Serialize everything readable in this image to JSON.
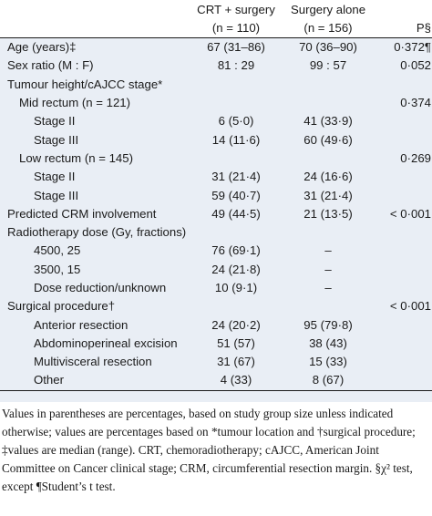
{
  "table": {
    "headers": {
      "group1": "CRT + surgery",
      "group1_n": "(n = 110)",
      "group2": "Surgery alone",
      "group2_n": "(n = 156)",
      "p": "P§"
    },
    "rows": [
      {
        "label": "Age (years)‡",
        "indent": 0,
        "crt": "67 (31–86)",
        "surgery": "70 (36–90)",
        "p": "0·372¶"
      },
      {
        "label": "Sex ratio (M : F)",
        "indent": 0,
        "crt": "81 : 29",
        "surgery": "99 : 57",
        "p": "0·052"
      },
      {
        "label": "Tumour height/cAJCC stage*",
        "indent": 0,
        "crt": "",
        "surgery": "",
        "p": ""
      },
      {
        "label": "Mid rectum (n = 121)",
        "indent": 1,
        "crt": "",
        "surgery": "",
        "p": "0·374"
      },
      {
        "label": "Stage II",
        "indent": 2,
        "crt": "6 (5·0)",
        "surgery": "41 (33·9)",
        "p": ""
      },
      {
        "label": "Stage III",
        "indent": 2,
        "crt": "14 (11·6)",
        "surgery": "60 (49·6)",
        "p": ""
      },
      {
        "label": "Low rectum (n = 145)",
        "indent": 1,
        "crt": "",
        "surgery": "",
        "p": "0·269"
      },
      {
        "label": "Stage II",
        "indent": 2,
        "crt": "31 (21·4)",
        "surgery": "24 (16·6)",
        "p": ""
      },
      {
        "label": "Stage III",
        "indent": 2,
        "crt": "59 (40·7)",
        "surgery": "31 (21·4)",
        "p": ""
      },
      {
        "label": "Predicted CRM involvement",
        "indent": 0,
        "crt": "49 (44·5)",
        "surgery": "21 (13·5)",
        "p": "< 0·001"
      },
      {
        "label": "Radiotherapy dose (Gy, fractions)",
        "indent": 0,
        "crt": "",
        "surgery": "",
        "p": ""
      },
      {
        "label": "4500, 25",
        "indent": 2,
        "crt": "76 (69·1)",
        "surgery": "–",
        "p": ""
      },
      {
        "label": "3500, 15",
        "indent": 2,
        "crt": "24 (21·8)",
        "surgery": "–",
        "p": ""
      },
      {
        "label": "Dose reduction/unknown",
        "indent": 2,
        "crt": "10 (9·1)",
        "surgery": "–",
        "p": ""
      },
      {
        "label": "Surgical procedure†",
        "indent": 0,
        "crt": "",
        "surgery": "",
        "p": "< 0·001"
      },
      {
        "label": "Anterior resection",
        "indent": 2,
        "crt": "24 (20·2)",
        "surgery": "95 (79·8)",
        "p": ""
      },
      {
        "label": "Abdominoperineal excision",
        "indent": 2,
        "crt": "51 (57)",
        "surgery": "38 (43)",
        "p": ""
      },
      {
        "label": "Multivisceral resection",
        "indent": 2,
        "crt": "31 (67)",
        "surgery": "15 (33)",
        "p": ""
      },
      {
        "label": "Other",
        "indent": 2,
        "crt": "4 (33)",
        "surgery": "8 (67)",
        "p": ""
      }
    ]
  },
  "footnote": "Values in parentheses are percentages, based on study group size unless indicated otherwise; values are percentages based on *tumour location and †surgical procedure; ‡values are median (range). CRT, chemoradiotherapy; cAJCC, American Joint Committee on Cancer clinical stage; CRM, circumferential resection margin. §χ² test, except ¶Student’s t test.",
  "colors": {
    "band": "#e9eef5",
    "text": "#1a1a1a"
  }
}
